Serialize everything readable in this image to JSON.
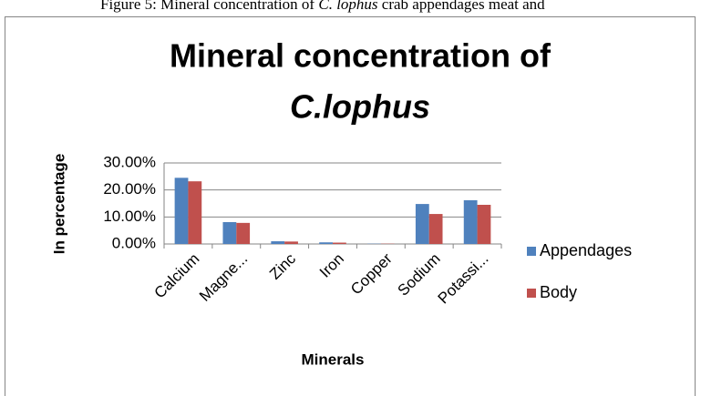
{
  "caption": {
    "prefix": "Figure 5: Mineral concentration of ",
    "italic": "C. lophus",
    "suffix": " crab appendages meat and"
  },
  "chart_data": {
    "type": "bar",
    "title_lines": [
      "Mineral concentration of",
      "C.lophus"
    ],
    "x_label": "Minerals",
    "y_label": "In percentage",
    "categories": [
      "Calcium",
      "Magne...",
      "Zinc",
      "Iron",
      "Copper",
      "Sodium",
      "Potassi..."
    ],
    "series": [
      {
        "name": "Appendages",
        "color": "#4f81bd",
        "values": [
          24.5,
          8.1,
          1.0,
          0.6,
          0.1,
          14.8,
          16.2
        ]
      },
      {
        "name": "Body",
        "color": "#c0504d",
        "values": [
          23.2,
          7.8,
          0.9,
          0.5,
          0.1,
          11.1,
          14.5
        ]
      }
    ],
    "ylim": [
      0,
      30
    ],
    "yticks": [
      {
        "value": 0,
        "label": "0.00%"
      },
      {
        "value": 10,
        "label": "10.00%"
      },
      {
        "value": 20,
        "label": "20.00%"
      },
      {
        "value": 30,
        "label": "30.00%"
      }
    ],
    "grid": true,
    "legend": "right"
  }
}
